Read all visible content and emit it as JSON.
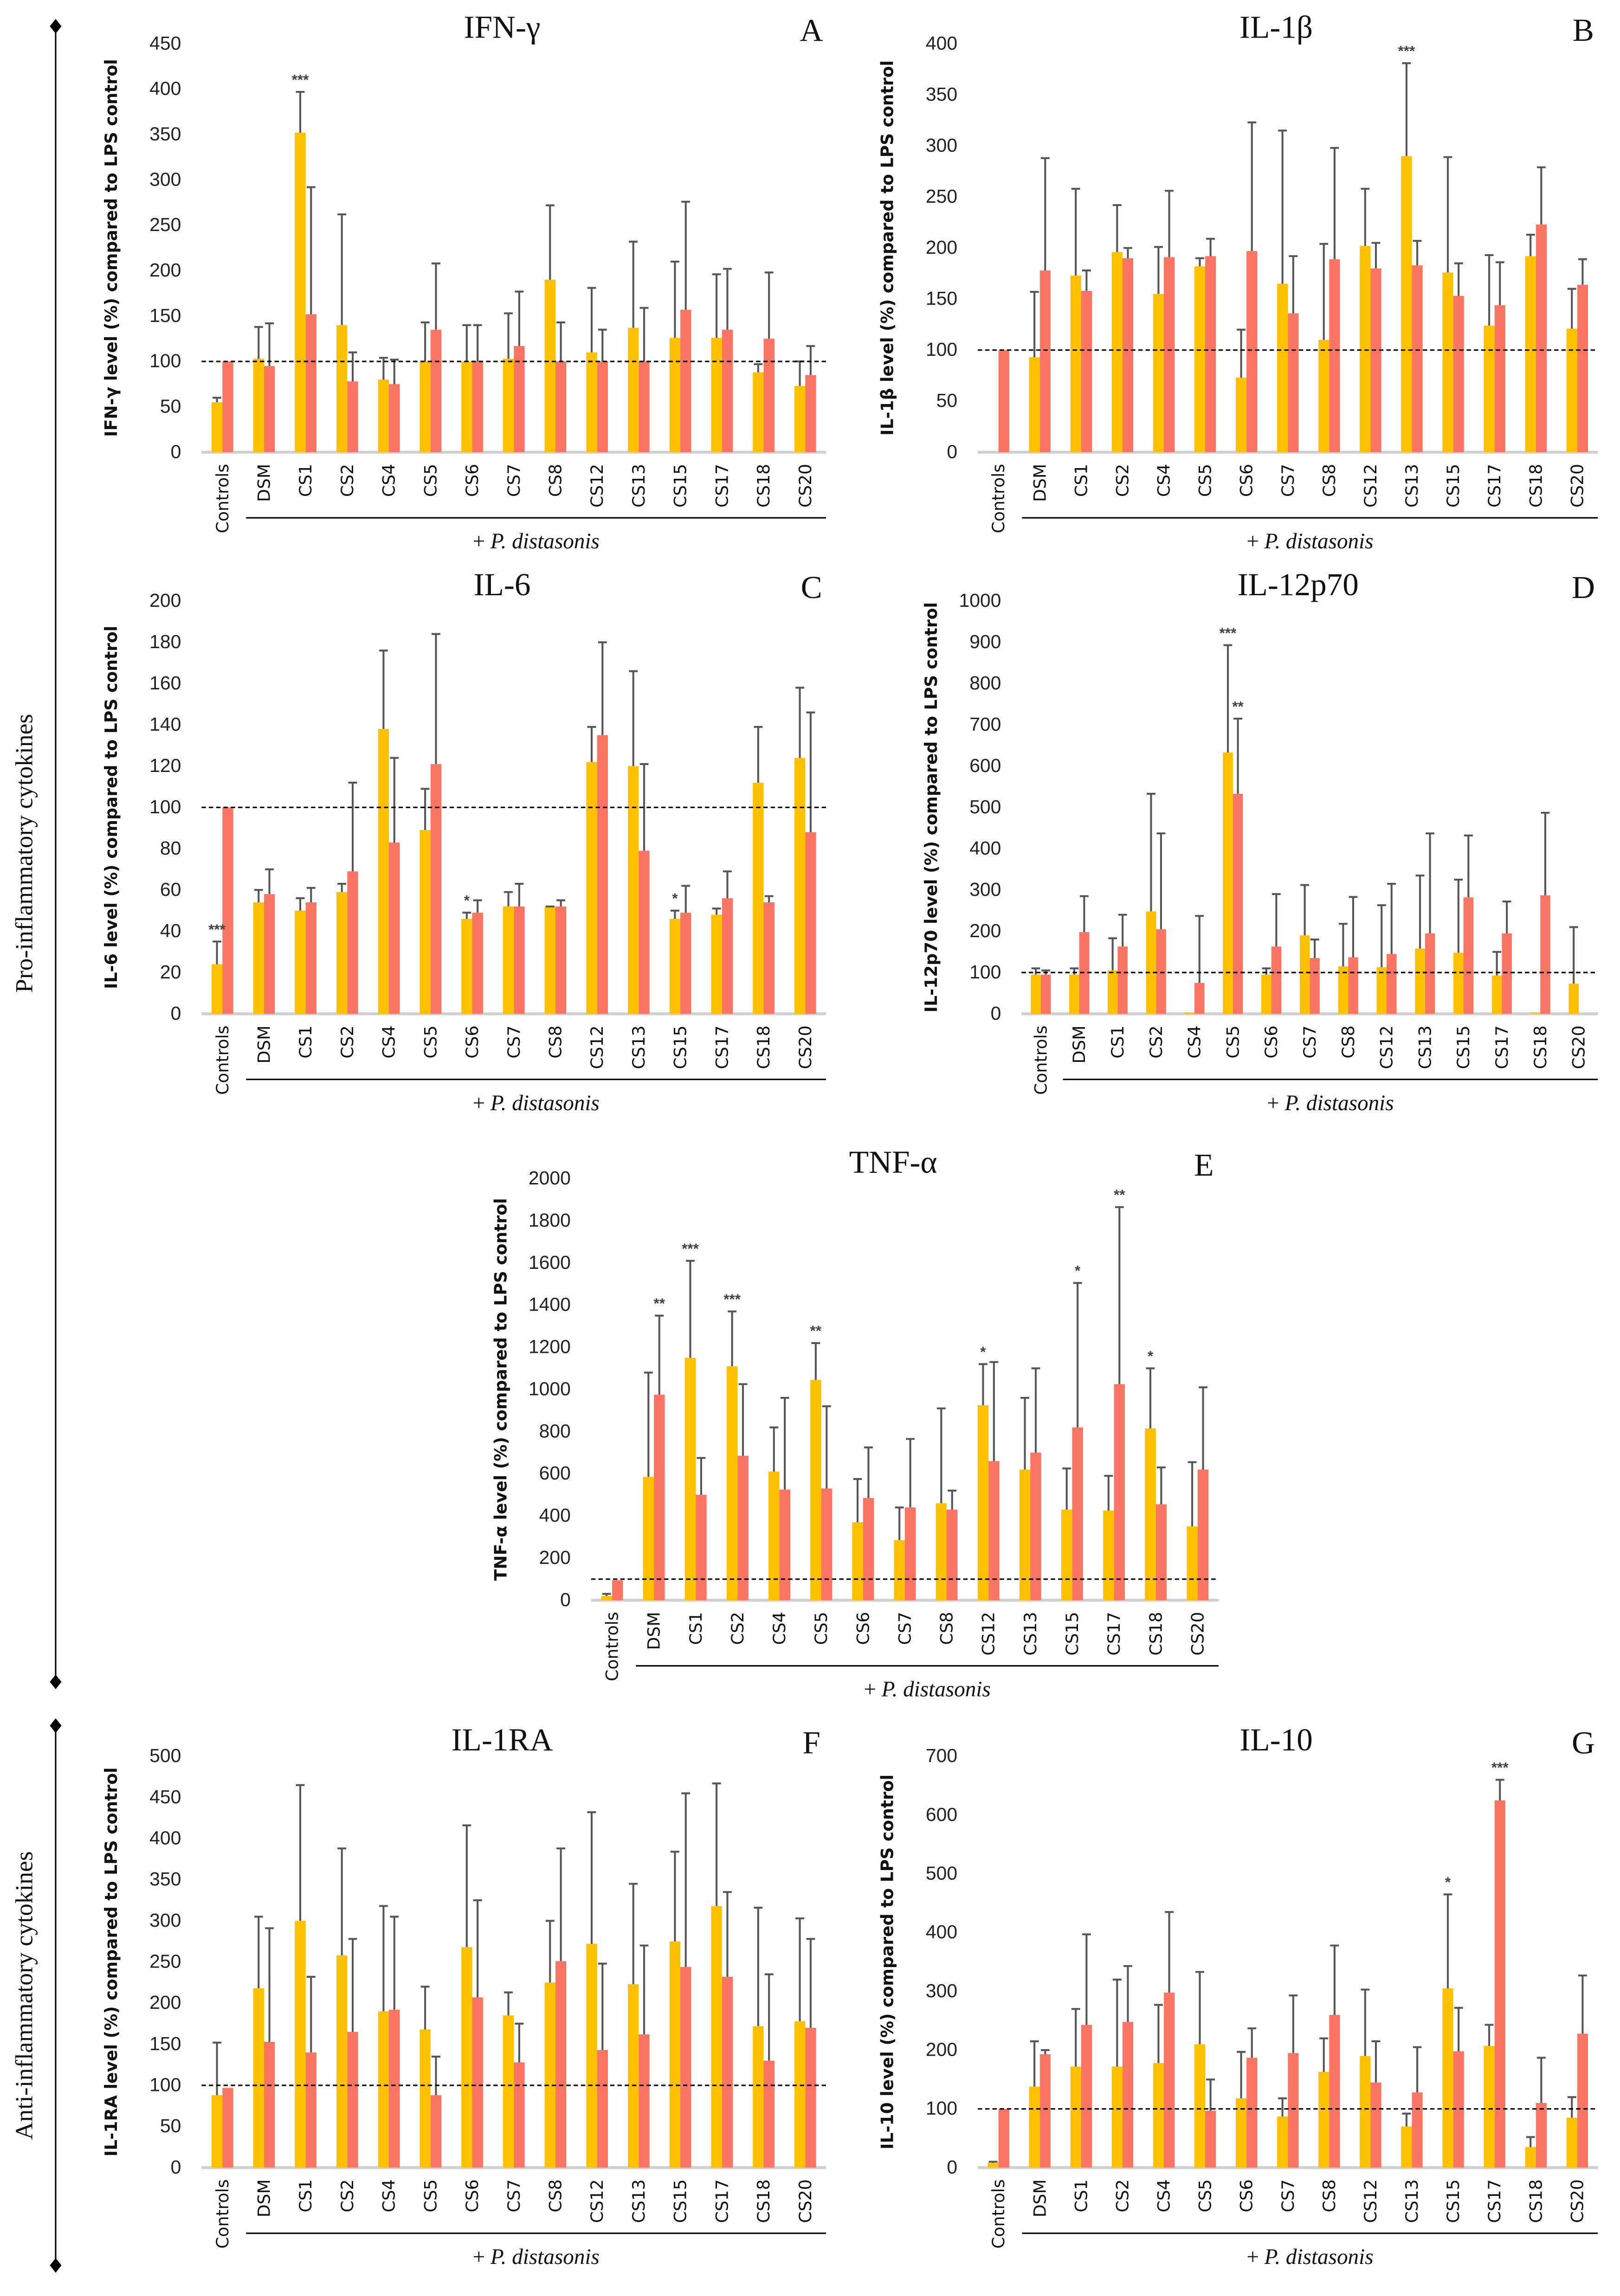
{
  "side_labels": [
    "Pro-inflammatory cytokines",
    "Anti-inflammatory cytokines"
  ],
  "group_label_prefix": "+ ",
  "group_label_species": "P. distasonis",
  "colors": {
    "series1": "#FFC000",
    "series2": "#FA7564",
    "error": "#555555",
    "refline": "#000000",
    "axis": "#D0D0D0"
  },
  "chart_data": [
    {
      "type": "bar",
      "letter": "A",
      "title": "IFN-γ",
      "ylabel": "IFN-γ level (%) compared to LPS control",
      "ylim": [
        0,
        450
      ],
      "ytick_step": 50,
      "reference_line": 100,
      "categories": [
        "Controls",
        "DSM",
        "CS1",
        "CS2",
        "CS4",
        "CS5",
        "CS6",
        "CS7",
        "CS8",
        "CS12",
        "CS13",
        "CS15",
        "CS17",
        "CS18",
        "CS20"
      ],
      "series": [
        {
          "name": "series1",
          "values": [
            55,
            103,
            352,
            140,
            80,
            100,
            100,
            103,
            190,
            110,
            137,
            126,
            126,
            88,
            73
          ],
          "error_top": [
            60,
            138,
            397,
            262,
            104,
            143,
            140,
            153,
            272,
            181,
            232,
            210,
            196,
            97,
            100
          ]
        },
        {
          "name": "series2",
          "values": [
            100,
            95,
            152,
            78,
            75,
            135,
            100,
            117,
            100,
            100,
            100,
            157,
            135,
            125,
            85
          ],
          "error_top": [
            null,
            142,
            292,
            110,
            102,
            208,
            140,
            177,
            143,
            135,
            159,
            276,
            202,
            198,
            117
          ]
        }
      ],
      "significance": [
        {
          "category": "CS1",
          "series": 0,
          "label": "***"
        }
      ]
    },
    {
      "type": "bar",
      "letter": "B",
      "title": "IL-1β",
      "ylabel": "IL-1β level (%) compared to LPS control",
      "ylim": [
        0,
        400
      ],
      "ytick_step": 50,
      "reference_line": 100,
      "categories": [
        "Controls",
        "DSM",
        "CS1",
        "CS2",
        "CS4",
        "CS5",
        "CS6",
        "CS7",
        "CS8",
        "CS12",
        "CS13",
        "CS15",
        "CS17",
        "CS18",
        "CS20"
      ],
      "series": [
        {
          "name": "series1",
          "values": [
            0,
            93,
            173,
            196,
            155,
            182,
            73,
            165,
            110,
            202,
            290,
            176,
            124,
            192,
            121
          ],
          "error_top": [
            null,
            157,
            258,
            242,
            201,
            190,
            120,
            315,
            204,
            258,
            381,
            289,
            193,
            213,
            160
          ]
        },
        {
          "name": "series2",
          "values": [
            100,
            178,
            158,
            190,
            191,
            192,
            197,
            136,
            189,
            180,
            183,
            153,
            144,
            223,
            164
          ],
          "error_top": [
            null,
            288,
            178,
            200,
            256,
            209,
            323,
            192,
            298,
            205,
            207,
            185,
            186,
            279,
            189
          ]
        }
      ],
      "significance": [
        {
          "category": "CS13",
          "series": 0,
          "label": "***"
        }
      ]
    },
    {
      "type": "bar",
      "letter": "C",
      "title": "IL-6",
      "ylabel": "IL-6 level (%) compared to LPS control",
      "ylim": [
        0,
        200
      ],
      "ytick_step": 20,
      "reference_line": 100,
      "categories": [
        "Controls",
        "DSM",
        "CS1",
        "CS2",
        "CS4",
        "CS5",
        "CS6",
        "CS7",
        "CS8",
        "CS12",
        "CS13",
        "CS15",
        "CS17",
        "CS18",
        "CS20"
      ],
      "series": [
        {
          "name": "series1",
          "values": [
            24,
            54,
            50,
            59,
            138,
            89,
            46,
            52,
            52,
            122,
            120,
            46,
            48,
            112,
            124
          ],
          "error_top": [
            35,
            60,
            56,
            63,
            176,
            109,
            49,
            59,
            52,
            139,
            166,
            50,
            51,
            139,
            158
          ]
        },
        {
          "name": "series2",
          "values": [
            100,
            58,
            54,
            69,
            83,
            121,
            49,
            52,
            52,
            135,
            79,
            49,
            56,
            54,
            88
          ],
          "error_top": [
            null,
            70,
            61,
            112,
            124,
            184,
            55,
            63,
            55,
            180,
            121,
            62,
            69,
            57,
            146
          ]
        }
      ],
      "significance": [
        {
          "category": "Controls",
          "series": 0,
          "label": "***"
        },
        {
          "category": "CS6",
          "series": 0,
          "label": "*"
        },
        {
          "category": "CS15",
          "series": 0,
          "label": "*"
        }
      ]
    },
    {
      "type": "bar",
      "letter": "D",
      "title": "IL-12p70",
      "ylabel": "IL-12p70 level (%)  compared to LPS control",
      "ylim": [
        0,
        1000
      ],
      "ytick_step": 100,
      "reference_line": 100,
      "categories": [
        "Controls",
        "DSM",
        "CS1",
        "CS2",
        "CS4",
        "CS5",
        "CS6",
        "CS7",
        "CS8",
        "CS12",
        "CS13",
        "CS15",
        "CS17",
        "CS18",
        "CS20"
      ],
      "series": [
        {
          "name": "series1",
          "values": [
            95,
            95,
            105,
            248,
            3,
            633,
            95,
            190,
            115,
            113,
            158,
            148,
            93,
            3,
            73
          ],
          "error_top": [
            110,
            110,
            183,
            533,
            null,
            893,
            110,
            312,
            218,
            263,
            335,
            325,
            150,
            null,
            210
          ]
        },
        {
          "name": "series2",
          "values": [
            95,
            198,
            163,
            205,
            75,
            533,
            163,
            135,
            137,
            145,
            195,
            282,
            195,
            287,
            0
          ],
          "error_top": [
            105,
            285,
            240,
            437,
            237,
            715,
            290,
            180,
            283,
            315,
            437,
            432,
            272,
            487,
            null
          ]
        }
      ],
      "significance": [
        {
          "category": "CS5",
          "series": 0,
          "label": "***"
        },
        {
          "category": "CS5",
          "series": 1,
          "label": "**"
        }
      ]
    },
    {
      "type": "bar",
      "letter": "E",
      "title": "TNF-α",
      "ylabel": "TNF-α level (%) compared to LPS control",
      "ylim": [
        0,
        2000
      ],
      "ytick_step": 200,
      "reference_line": 100,
      "categories": [
        "Controls",
        "DSM",
        "CS1",
        "CS2",
        "CS4",
        "CS5",
        "CS6",
        "CS7",
        "CS8",
        "CS12",
        "CS13",
        "CS15",
        "CS17",
        "CS18",
        "CS20"
      ],
      "series": [
        {
          "name": "series1",
          "values": [
            20,
            585,
            1150,
            1110,
            610,
            1045,
            370,
            285,
            460,
            925,
            620,
            430,
            425,
            815,
            350
          ],
          "error_top": [
            30,
            1080,
            1610,
            1370,
            820,
            1220,
            575,
            440,
            910,
            1120,
            960,
            625,
            590,
            1100,
            655
          ]
        },
        {
          "name": "series2",
          "values": [
            95,
            975,
            500,
            685,
            525,
            530,
            485,
            440,
            430,
            660,
            700,
            820,
            1025,
            455,
            620
          ],
          "error_top": [
            null,
            1350,
            675,
            1025,
            960,
            920,
            725,
            765,
            520,
            1130,
            1100,
            1505,
            1865,
            630,
            1010
          ]
        }
      ],
      "significance": [
        {
          "category": "DSM",
          "series": 1,
          "label": "**"
        },
        {
          "category": "CS1",
          "series": 0,
          "label": "***"
        },
        {
          "category": "CS2",
          "series": 0,
          "label": "***"
        },
        {
          "category": "CS5",
          "series": 0,
          "label": "**"
        },
        {
          "category": "CS12",
          "series": 0,
          "label": "*"
        },
        {
          "category": "CS15",
          "series": 1,
          "label": "*"
        },
        {
          "category": "CS17",
          "series": 1,
          "label": "**"
        },
        {
          "category": "CS18",
          "series": 0,
          "label": "*"
        }
      ]
    },
    {
      "type": "bar",
      "letter": "F",
      "title": "IL-1RA",
      "ylabel": "IL-1RA level (%) compared to LPS control",
      "ylim": [
        0,
        500
      ],
      "ytick_step": 50,
      "reference_line": 100,
      "categories": [
        "Controls",
        "DSM",
        "CS1",
        "CS2",
        "CS4",
        "CS5",
        "CS6",
        "CS7",
        "CS8",
        "CS12",
        "CS13",
        "CS15",
        "CS17",
        "CS18",
        "CS20"
      ],
      "series": [
        {
          "name": "series1",
          "values": [
            88,
            218,
            300,
            258,
            190,
            168,
            268,
            185,
            225,
            272,
            223,
            275,
            318,
            172,
            178
          ],
          "error_top": [
            152,
            305,
            465,
            388,
            318,
            220,
            416,
            213,
            300,
            432,
            345,
            384,
            467,
            316,
            303
          ]
        },
        {
          "name": "series2",
          "values": [
            97,
            153,
            140,
            165,
            192,
            88,
            207,
            128,
            251,
            143,
            162,
            244,
            232,
            130,
            170
          ],
          "error_top": [
            null,
            291,
            232,
            278,
            305,
            135,
            325,
            175,
            388,
            248,
            270,
            455,
            335,
            235,
            278
          ]
        }
      ],
      "significance": []
    },
    {
      "type": "bar",
      "letter": "G",
      "title": "IL-10",
      "ylabel": "IL-10 level (%) compared to LPS control",
      "ylim": [
        0,
        700
      ],
      "ytick_step": 100,
      "reference_line": 100,
      "categories": [
        "Controls",
        "DSM",
        "CS1",
        "CS2",
        "CS4",
        "CS5",
        "CS6",
        "CS7",
        "CS8",
        "CS12",
        "CS13",
        "CS15",
        "CS17",
        "CS18",
        "CS20"
      ],
      "series": [
        {
          "name": "series1",
          "values": [
            8,
            138,
            172,
            172,
            178,
            210,
            118,
            87,
            163,
            190,
            70,
            305,
            207,
            35,
            85
          ],
          "error_top": [
            10,
            215,
            270,
            320,
            277,
            333,
            197,
            118,
            220,
            303,
            92,
            465,
            243,
            52,
            120
          ]
        },
        {
          "name": "series2",
          "values": [
            100,
            193,
            243,
            248,
            298,
            97,
            187,
            195,
            260,
            145,
            128,
            198,
            625,
            110,
            228
          ],
          "error_top": [
            null,
            200,
            397,
            343,
            435,
            150,
            237,
            293,
            378,
            215,
            205,
            272,
            660,
            187,
            327
          ]
        }
      ],
      "significance": [
        {
          "category": "CS15",
          "series": 0,
          "label": "*"
        },
        {
          "category": "CS17",
          "series": 1,
          "label": "***"
        }
      ]
    }
  ]
}
